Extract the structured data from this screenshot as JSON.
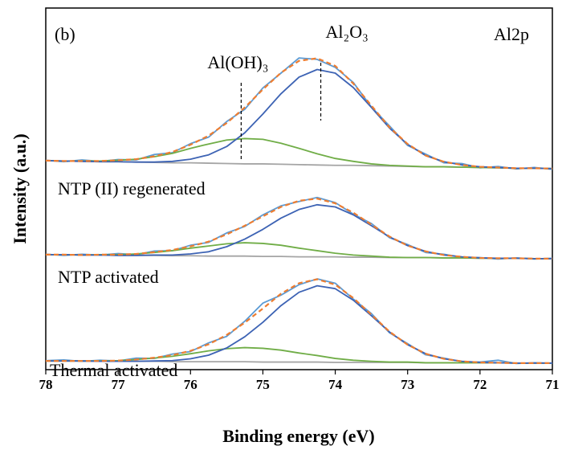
{
  "chart_data": {
    "type": "line",
    "xlabel": "Binding energy (eV)",
    "ylabel": "Intensity (a.u.)",
    "annotations": [
      "(b)",
      "Al2p"
    ],
    "markers": [
      {
        "x": 74.2,
        "label": "Al₂O₃"
      },
      {
        "x": 75.3,
        "label": "Al(OH)₃"
      }
    ],
    "xlim": [
      78,
      71
    ],
    "xticks": [
      78,
      77,
      76,
      75,
      74,
      73,
      72,
      71
    ],
    "ylim": [
      0,
      100
    ],
    "x": [
      78,
      77.75,
      77.5,
      77.25,
      77,
      76.75,
      76.5,
      76.25,
      76,
      75.75,
      75.5,
      75.25,
      75,
      74.75,
      74.5,
      74.25,
      74,
      73.75,
      73.5,
      73.25,
      73,
      72.75,
      72.5,
      72.25,
      72,
      71.75,
      71.5,
      71.25,
      71
    ],
    "panels": [
      {
        "series": [
          {
            "color": "#a5a5a5",
            "values": [
              57.8,
              57.7,
              57.6,
              57.5,
              57.5,
              57.4,
              57.3,
              57.2,
              57.2,
              57.1,
              57.0,
              56.9,
              56.9,
              56.8,
              56.7,
              56.6,
              56.5,
              56.5,
              56.4,
              56.3,
              56.2,
              56.1,
              56.1,
              56.0,
              55.9,
              55.8,
              55.7,
              55.7,
              55.6
            ]
          },
          {
            "color": "#5b9bd5",
            "values": [
              57.9,
              57.5,
              58.0,
              57.6,
              58.1,
              58.0,
              59.5,
              60.0,
              62.5,
              64.3,
              68.6,
              72.0,
              77.9,
              82.0,
              86.2,
              85.8,
              83.6,
              79.4,
              72.6,
              67.4,
              62.0,
              59.6,
              57.2,
              57.0,
              55.8,
              56.2,
              55.5,
              55.9,
              55.4
            ]
          },
          {
            "color": "#70ad47",
            "values": [
              57.8,
              57.7,
              57.7,
              57.7,
              57.9,
              58.2,
              58.9,
              59.8,
              61.2,
              62.4,
              63.5,
              63.9,
              63.7,
              62.6,
              61.2,
              59.7,
              58.4,
              57.6,
              56.9,
              56.5,
              56.3,
              56.1,
              56.1,
              56.0,
              55.9,
              55.8,
              55.7,
              55.7,
              55.6
            ]
          },
          {
            "color": "#3d63b4",
            "values": [
              57.8,
              57.7,
              57.6,
              57.5,
              57.5,
              57.4,
              57.4,
              57.6,
              58.2,
              59.4,
              61.7,
              65.5,
              70.7,
              76.3,
              80.9,
              83.0,
              82.0,
              78.0,
              72.5,
              66.8,
              62.3,
              59.2,
              57.5,
              56.6,
              56.1,
              55.9,
              55.7,
              55.7,
              55.6
            ]
          },
          {
            "color": "#ed7d31",
            "dashed": true,
            "values": [
              57.8,
              57.7,
              57.7,
              57.7,
              57.9,
              58.2,
              59.0,
              60.2,
              62.2,
              64.7,
              68.2,
              72.5,
              77.5,
              82.1,
              85.4,
              86.1,
              84.0,
              79.1,
              73.0,
              67.0,
              62.4,
              59.2,
              57.5,
              56.6,
              56.1,
              55.9,
              55.7,
              55.7,
              55.6
            ]
          }
        ]
      },
      {
        "label": "NTP (II) regenerated",
        "series": [
          {
            "color": "#a5a5a5",
            "values": [
              31.8,
              31.8,
              31.7,
              31.7,
              31.6,
              31.6,
              31.6,
              31.5,
              31.5,
              31.4,
              31.4,
              31.4,
              31.3,
              31.3,
              31.2,
              31.2,
              31.2,
              31.1,
              31.1,
              31.0,
              31.0,
              31.0,
              30.9,
              30.9,
              30.8,
              30.8,
              30.8,
              30.7,
              30.7
            ]
          },
          {
            "color": "#5b9bd5",
            "values": [
              31.9,
              31.6,
              31.9,
              31.7,
              32.1,
              31.8,
              32.8,
              32.9,
              34.4,
              35.2,
              37.8,
              39.6,
              42.8,
              45.3,
              46.5,
              47.6,
              46.2,
              43.0,
              40.4,
              36.5,
              34.6,
              32.4,
              31.9,
              31.1,
              31.0,
              30.6,
              30.9,
              30.6,
              30.8
            ]
          },
          {
            "color": "#70ad47",
            "values": [
              31.8,
              31.8,
              31.7,
              31.8,
              31.8,
              32.0,
              32.4,
              32.9,
              33.6,
              34.2,
              34.8,
              35.1,
              34.9,
              34.4,
              33.6,
              32.9,
              32.2,
              31.7,
              31.4,
              31.1,
              31.0,
              31.0,
              30.9,
              30.9,
              30.8,
              30.8,
              30.8,
              30.7,
              30.7
            ]
          },
          {
            "color": "#3d63b4",
            "values": [
              31.8,
              31.8,
              31.7,
              31.7,
              31.6,
              31.6,
              31.7,
              31.7,
              32.0,
              32.6,
              34.0,
              36.1,
              38.8,
              41.9,
              44.3,
              45.6,
              45.0,
              42.8,
              39.8,
              36.7,
              34.3,
              32.7,
              31.7,
              31.2,
              30.9,
              30.8,
              30.8,
              30.7,
              30.7
            ]
          },
          {
            "color": "#ed7d31",
            "dashed": true,
            "values": [
              31.8,
              31.8,
              31.7,
              31.8,
              31.8,
              32.0,
              32.5,
              33.1,
              34.1,
              35.4,
              37.4,
              39.8,
              42.4,
              45.0,
              46.7,
              47.3,
              46.0,
              43.4,
              40.1,
              36.8,
              34.3,
              32.7,
              31.7,
              31.2,
              30.9,
              30.8,
              30.8,
              30.7,
              30.7
            ]
          }
        ]
      },
      {
        "label": "NTP activated",
        "series": [
          {
            "color": "#a5a5a5",
            "values": [
              2.4,
              2.4,
              2.4,
              2.3,
              2.3,
              2.3,
              2.3,
              2.2,
              2.2,
              2.2,
              2.2,
              2.2,
              2.1,
              2.1,
              2.1,
              2.1,
              2.0,
              2.0,
              2.0,
              2.0,
              2.0,
              1.9,
              1.9,
              1.9,
              1.9,
              1.9,
              1.8,
              1.8,
              1.8
            ]
          },
          {
            "color": "#5b9bd5",
            "values": [
              2.5,
              2.7,
              2.3,
              2.6,
              2.4,
              3.2,
              3.1,
              4.3,
              5.0,
              7.4,
              9.2,
              13.4,
              18.4,
              20.6,
              23.5,
              25.1,
              23.9,
              19.5,
              15.5,
              10.2,
              7.2,
              4.1,
              3.2,
              2.2,
              2.1,
              2.6,
              1.7,
              1.9,
              1.8
            ]
          },
          {
            "color": "#70ad47",
            "values": [
              2.4,
              2.4,
              2.4,
              2.4,
              2.5,
              2.8,
              3.2,
              3.7,
              4.4,
              5.2,
              5.8,
              6.1,
              5.9,
              5.4,
              4.6,
              3.9,
              3.1,
              2.6,
              2.3,
              2.1,
              2.1,
              1.9,
              1.9,
              1.9,
              1.9,
              1.9,
              1.8,
              1.8,
              1.8
            ]
          },
          {
            "color": "#3d63b4",
            "values": [
              2.4,
              2.4,
              2.4,
              2.3,
              2.3,
              2.3,
              2.4,
              2.5,
              3.0,
              4.0,
              6.0,
              9.1,
              13.1,
              17.7,
              21.4,
              23.2,
              22.4,
              19.2,
              14.9,
              10.4,
              6.9,
              4.4,
              3.0,
              2.3,
              2.0,
              1.9,
              1.8,
              1.8,
              1.8
            ]
          },
          {
            "color": "#ed7d31",
            "dashed": true,
            "values": [
              2.4,
              2.4,
              2.4,
              2.4,
              2.5,
              2.8,
              3.3,
              4.0,
              5.2,
              7.0,
              9.6,
              13.0,
              16.9,
              21.0,
              23.9,
              25.0,
              23.5,
              19.8,
              15.2,
              10.5,
              6.9,
              4.4,
              3.0,
              2.3,
              2.0,
              1.9,
              1.8,
              1.8,
              1.8
            ]
          }
        ]
      },
      {
        "label": "Thermal activated"
      }
    ]
  }
}
